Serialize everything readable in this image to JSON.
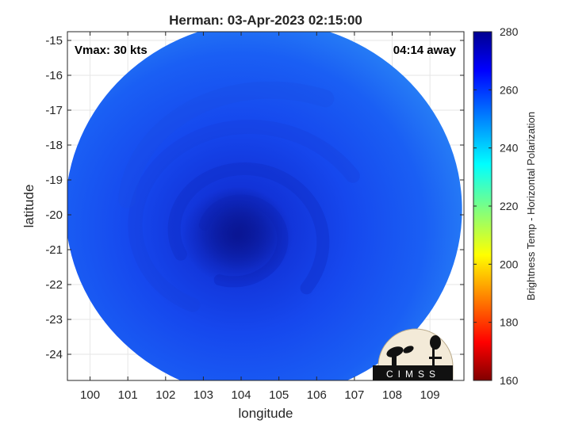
{
  "chart_data": {
    "type": "heatmap",
    "title": "Herman: 03-Apr-2023 02:15:00",
    "xlabel": "longitude",
    "ylabel": "latitude",
    "xlim": [
      99.4,
      109.9
    ],
    "ylim": [
      -24.75,
      -14.75
    ],
    "xticks": [
      100,
      101,
      102,
      103,
      104,
      105,
      106,
      107,
      108,
      109
    ],
    "yticks": [
      -15,
      -16,
      -17,
      -18,
      -19,
      -20,
      -21,
      -22,
      -23,
      -24
    ],
    "grid": true,
    "annotations": {
      "vmax": "Vmax: 30 kts",
      "away": "04:14 away"
    },
    "storm_center": {
      "lon": 103.9,
      "lat": -20.6
    },
    "swath": {
      "center_lon": 104.6,
      "center_lat": -19.85,
      "radius_deg_lon": 5.25,
      "radius_deg_lat": 5.4
    },
    "colorbar": {
      "label": "Brightness Temp - Horizontal Polarization",
      "min": 160,
      "max": 280,
      "ticks": [
        280,
        260,
        240,
        220,
        200,
        180,
        160
      ],
      "colormap": "jet"
    }
  },
  "logo": {
    "text": "CIMSS"
  }
}
